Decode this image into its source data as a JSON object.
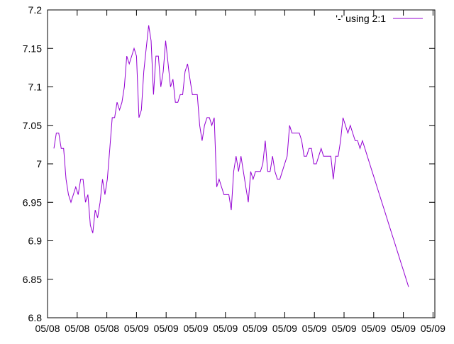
{
  "chart_data": {
    "type": "line",
    "title": "",
    "xlabel": "",
    "ylabel": "",
    "ylim": [
      6.8,
      7.2
    ],
    "y_ticks": [
      "7.2",
      "7.15",
      "7.1",
      "7.05",
      "7",
      "6.95",
      "6.9",
      "6.85",
      "6.8"
    ],
    "y_tick_values": [
      7.2,
      7.15,
      7.1,
      7.05,
      7.0,
      6.95,
      6.9,
      6.85,
      6.8
    ],
    "x_ticks": [
      "05/08",
      "05/08",
      "05/08",
      "05/09",
      "05/09",
      "05/09",
      "05/09",
      "05/09",
      "05/09",
      "05/09",
      "05/09",
      "05/09",
      "05/09",
      "05/09"
    ],
    "grid": false,
    "legend_position": "top-right",
    "series": [
      {
        "name": "'-' using 2:1",
        "color": "#9400d3",
        "values": [
          7.02,
          7.04,
          7.04,
          7.02,
          7.02,
          6.98,
          6.96,
          6.95,
          6.96,
          6.97,
          6.96,
          6.98,
          6.98,
          6.95,
          6.96,
          6.92,
          6.91,
          6.94,
          6.93,
          6.95,
          6.98,
          6.96,
          6.98,
          7.02,
          7.06,
          7.06,
          7.08,
          7.07,
          7.08,
          7.1,
          7.14,
          7.13,
          7.14,
          7.15,
          7.14,
          7.06,
          7.07,
          7.12,
          7.15,
          7.18,
          7.16,
          7.09,
          7.14,
          7.14,
          7.1,
          7.12,
          7.16,
          7.13,
          7.1,
          7.11,
          7.08,
          7.08,
          7.09,
          7.09,
          7.12,
          7.13,
          7.11,
          7.09,
          7.09,
          7.09,
          7.05,
          7.03,
          7.05,
          7.06,
          7.06,
          7.05,
          7.06,
          6.97,
          6.98,
          6.97,
          6.96,
          6.96,
          6.96,
          6.94,
          6.99,
          7.01,
          6.99,
          7.01,
          6.99,
          6.97,
          6.95,
          6.99,
          6.98,
          6.99,
          6.99,
          6.99,
          7.0,
          7.03,
          6.99,
          6.99,
          7.01,
          6.99,
          6.98,
          6.98,
          6.99,
          7.0,
          7.01,
          7.05,
          7.04,
          7.04,
          7.04,
          7.04,
          7.03,
          7.01,
          7.01,
          7.02,
          7.02,
          7.0,
          7.0,
          7.01,
          7.02,
          7.01,
          7.01,
          7.01,
          7.01,
          6.98,
          7.01,
          7.01,
          7.03,
          7.06,
          7.05,
          7.04,
          7.05,
          7.04,
          7.03,
          7.03,
          7.02,
          7.03,
          7.02,
          7.01,
          7.0,
          6.99,
          6.98,
          6.97,
          6.96,
          6.95,
          6.94,
          6.93,
          6.92,
          6.91,
          6.9,
          6.89,
          6.88,
          6.87,
          6.86,
          6.85,
          6.84
        ]
      }
    ]
  }
}
